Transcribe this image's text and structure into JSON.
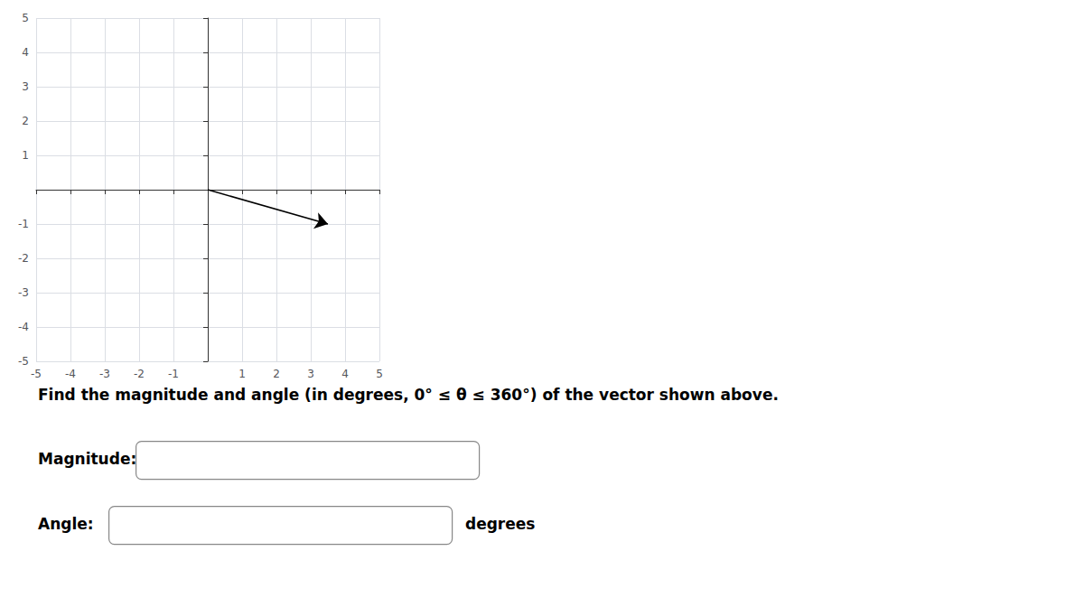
{
  "chart_data": {
    "type": "vector",
    "x": [
      0,
      3.5
    ],
    "values": [
      0,
      -1
    ],
    "color": "#000000",
    "xlim": [
      -5,
      5
    ],
    "ylim": [
      -5,
      5
    ],
    "xticks": [
      -5,
      -4,
      -3,
      -2,
      -1,
      1,
      2,
      3,
      4,
      5
    ],
    "yticks": [
      -5,
      -4,
      -3,
      -2,
      -1,
      1,
      2,
      3,
      4,
      5
    ],
    "grid": true,
    "annotations": [
      "Find the magnitude and angle (in degrees, 0° ≤ θ ≤ 360°) of the vector shown above.",
      "Magnitude:",
      "Angle:",
      "degrees"
    ]
  }
}
